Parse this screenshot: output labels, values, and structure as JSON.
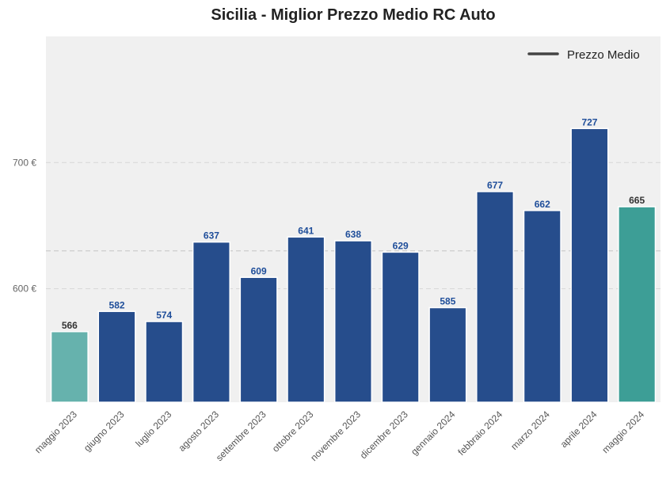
{
  "chart_data": {
    "type": "bar",
    "title": "Sicilia - Miglior Prezzo Medio RC Auto",
    "xlabel": "",
    "ylabel": "",
    "categories": [
      "maggio 2023",
      "giugno 2023",
      "luglio 2023",
      "agosto 2023",
      "settembre 2023",
      "ottobre 2023",
      "novembre 2023",
      "dicembre 2023",
      "gennaio 2024",
      "febbraio 2024",
      "marzo 2024",
      "aprile 2024",
      "maggio 2024"
    ],
    "values": [
      566,
      582,
      574,
      637,
      609,
      641,
      638,
      629,
      585,
      677,
      662,
      727,
      665
    ],
    "value_labels": [
      "566",
      "582",
      "574",
      "637",
      "609",
      "641",
      "638",
      "629",
      "585",
      "677",
      "662",
      "727",
      "665"
    ],
    "ylim": [
      510,
      800
    ],
    "yticks": [
      600,
      700
    ],
    "ytick_labels": [
      "600 €",
      "700 €"
    ],
    "reference_line": {
      "name": "Prezzo Medio",
      "value": 630
    },
    "legend": {
      "label": "Prezzo Medio",
      "position": "top-right"
    },
    "grid": true
  },
  "colors": {
    "bar": "#264d8c",
    "first_bar": "#66b2ad",
    "last_bar": "#3d9e96",
    "label_blue": "#1f4e9a",
    "label_dark": "#333333",
    "plot_bg": "#f0f0f0",
    "legend_line": "#444444"
  }
}
